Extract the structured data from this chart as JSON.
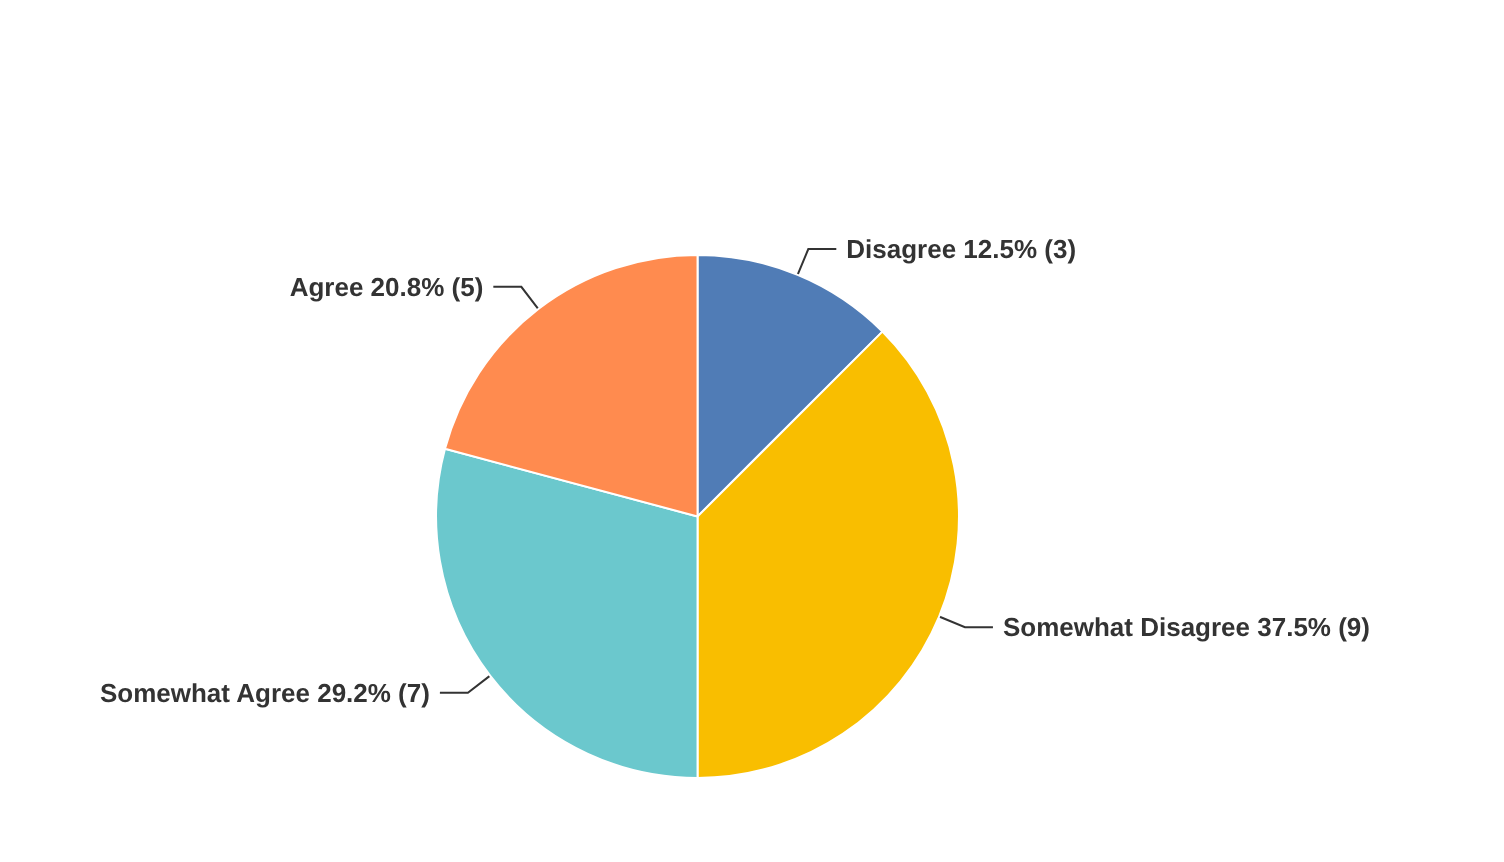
{
  "chart_data": {
    "type": "pie",
    "categories": [
      "Disagree",
      "Somewhat Disagree",
      "Somewhat Agree",
      "Agree"
    ],
    "values": [
      3,
      9,
      7,
      5
    ],
    "value_labels": [
      "12.5% (3)",
      "37.5% (9)",
      "29.2% (7)",
      "20.8% (5)"
    ],
    "colors": [
      "#507cb6",
      "#f9be00",
      "#6bc8cd",
      "#ff8b4f"
    ],
    "legend": false
  }
}
